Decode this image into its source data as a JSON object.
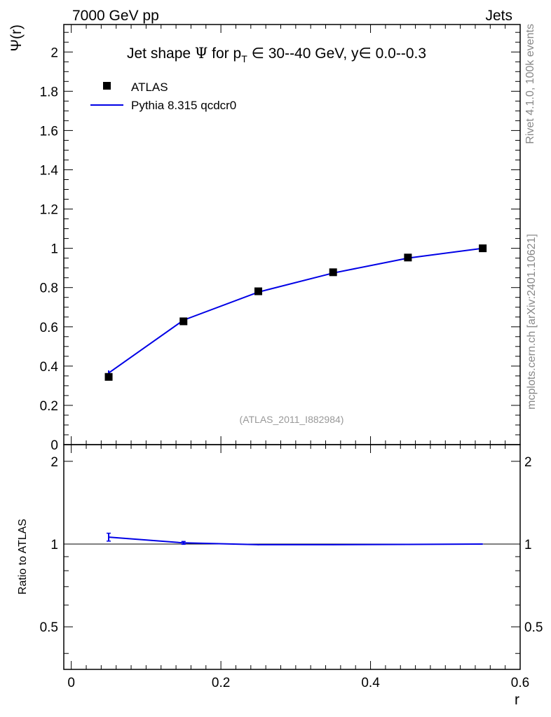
{
  "header": {
    "left_label": "7000 GeV pp",
    "right_label": "Jets"
  },
  "side_labels": {
    "rivet": "Rivet 4.1.0,  100k events",
    "mcplots": "mcplots.cern.ch [arXiv:2401.10621]"
  },
  "colors": {
    "data": "#000000",
    "mc": "#0000e6",
    "watermark": "#999999"
  },
  "chart_data": [
    {
      "type": "line",
      "title_parts": {
        "prefix": "Jet shape ",
        "psi": "Ψ",
        "mid": " for p",
        "sub": "T",
        "range": " ∈ 30--40 GeV, y",
        "yrange": "∈ 0.0--0.3"
      },
      "ylabel": "Ψ(r)",
      "xlabel": "r",
      "xlim": [
        -0.01,
        0.6
      ],
      "ylim": [
        0,
        2.14
      ],
      "xticks": [
        0,
        0.2,
        0.4,
        0.6
      ],
      "xtick_labels": [
        "0",
        "0.2",
        "0.4",
        "0.6"
      ],
      "yticks": [
        0,
        0.2,
        0.4,
        0.6,
        0.8,
        1,
        1.2,
        1.4,
        1.6,
        1.8,
        2
      ],
      "ytick_labels": [
        "0",
        "0.2",
        "0.4",
        "0.6",
        "0.8",
        "1",
        "1.2",
        "1.4",
        "1.6",
        "1.8",
        "2"
      ],
      "watermark": "(ATLAS_2011_I882984)",
      "legend": [
        "ATLAS",
        "Pythia 8.315 qcdcr0"
      ],
      "series": [
        {
          "name": "ATLAS",
          "style": "markers",
          "x": [
            0.05,
            0.15,
            0.25,
            0.35,
            0.45,
            0.55
          ],
          "y": [
            0.345,
            0.628,
            0.781,
            0.878,
            0.953,
            1.0
          ]
        },
        {
          "name": "Pythia 8.315 qcdcr0",
          "style": "line",
          "x": [
            0.05,
            0.15,
            0.25,
            0.35,
            0.45,
            0.55
          ],
          "y": [
            0.365,
            0.634,
            0.777,
            0.874,
            0.95,
            1.0
          ],
          "yerr": [
            0.013,
            0.006,
            0.003,
            0.002,
            0.001,
            0.0
          ]
        }
      ]
    },
    {
      "type": "line",
      "ylabel": "Ratio to ATLAS",
      "xlabel": "r",
      "xlim": [
        -0.01,
        0.6
      ],
      "ylim": [
        0.35,
        2.3
      ],
      "scale": "log",
      "yticks": [
        0.5,
        1,
        2
      ],
      "ytick_labels": [
        "0.5",
        "1",
        "2"
      ],
      "reference": 1.0,
      "series": [
        {
          "name": "Pythia 8.315 qcdcr0",
          "x": [
            0.05,
            0.15,
            0.25,
            0.35,
            0.45,
            0.55
          ],
          "y": [
            1.06,
            1.01,
            0.995,
            0.995,
            0.997,
            1.0
          ],
          "yerr": [
            0.035,
            0.012,
            0.006,
            0.004,
            0.003,
            0.002
          ]
        }
      ]
    }
  ]
}
